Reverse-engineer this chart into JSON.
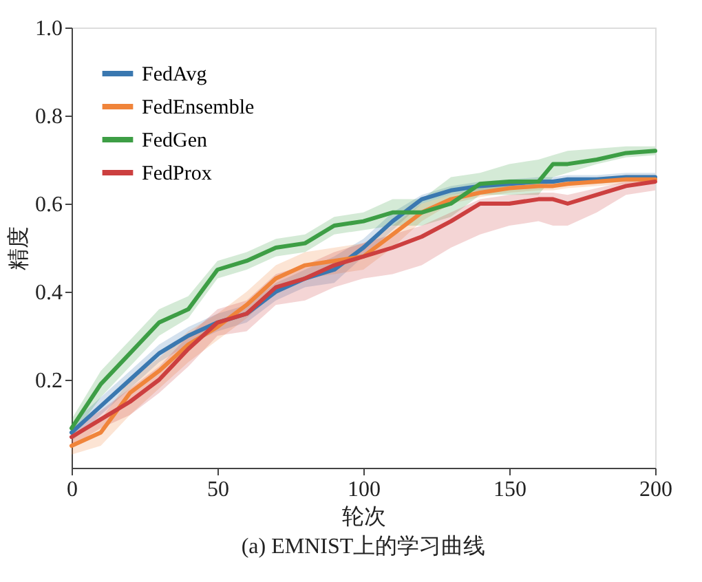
{
  "chart_data": {
    "type": "line",
    "title": "(a) EMNIST上的学习曲线",
    "xlabel": "轮次",
    "ylabel": "精度",
    "x": [
      0,
      10,
      20,
      30,
      40,
      50,
      60,
      70,
      80,
      90,
      100,
      110,
      120,
      130,
      140,
      150,
      160,
      165,
      170,
      180,
      190,
      200
    ],
    "series": [
      {
        "name": "FedAvg",
        "color": "#3a78b0",
        "values": [
          0.08,
          0.14,
          0.2,
          0.26,
          0.3,
          0.33,
          0.35,
          0.4,
          0.43,
          0.45,
          0.5,
          0.56,
          0.61,
          0.63,
          0.64,
          0.645,
          0.65,
          0.65,
          0.655,
          0.655,
          0.66,
          0.66
        ],
        "lower": [
          0.06,
          0.12,
          0.18,
          0.24,
          0.28,
          0.31,
          0.33,
          0.38,
          0.41,
          0.42,
          0.48,
          0.54,
          0.6,
          0.62,
          0.63,
          0.635,
          0.64,
          0.64,
          0.645,
          0.645,
          0.65,
          0.65
        ],
        "upper": [
          0.1,
          0.16,
          0.22,
          0.28,
          0.32,
          0.35,
          0.37,
          0.42,
          0.45,
          0.48,
          0.52,
          0.58,
          0.62,
          0.64,
          0.65,
          0.655,
          0.66,
          0.66,
          0.665,
          0.665,
          0.67,
          0.67
        ]
      },
      {
        "name": "FedEnsemble",
        "color": "#f0843a",
        "values": [
          0.05,
          0.08,
          0.17,
          0.22,
          0.28,
          0.32,
          0.37,
          0.43,
          0.46,
          0.47,
          0.48,
          0.53,
          0.58,
          0.61,
          0.625,
          0.635,
          0.64,
          0.64,
          0.645,
          0.65,
          0.655,
          0.655
        ],
        "lower": [
          0.03,
          0.05,
          0.12,
          0.18,
          0.24,
          0.29,
          0.34,
          0.4,
          0.43,
          0.44,
          0.45,
          0.5,
          0.56,
          0.6,
          0.615,
          0.625,
          0.63,
          0.63,
          0.635,
          0.64,
          0.645,
          0.645
        ],
        "upper": [
          0.07,
          0.11,
          0.2,
          0.25,
          0.31,
          0.35,
          0.4,
          0.46,
          0.49,
          0.5,
          0.51,
          0.55,
          0.6,
          0.62,
          0.635,
          0.645,
          0.65,
          0.65,
          0.655,
          0.66,
          0.665,
          0.665
        ]
      },
      {
        "name": "FedGen",
        "color": "#3d9e45",
        "values": [
          0.09,
          0.19,
          0.26,
          0.33,
          0.36,
          0.45,
          0.47,
          0.5,
          0.51,
          0.55,
          0.56,
          0.58,
          0.58,
          0.6,
          0.645,
          0.65,
          0.65,
          0.69,
          0.69,
          0.7,
          0.715,
          0.72
        ],
        "lower": [
          0.07,
          0.16,
          0.23,
          0.3,
          0.34,
          0.43,
          0.45,
          0.48,
          0.49,
          0.53,
          0.54,
          0.55,
          0.55,
          0.57,
          0.62,
          0.62,
          0.62,
          0.66,
          0.67,
          0.69,
          0.705,
          0.71
        ],
        "upper": [
          0.11,
          0.22,
          0.29,
          0.36,
          0.39,
          0.47,
          0.49,
          0.52,
          0.53,
          0.57,
          0.58,
          0.61,
          0.61,
          0.66,
          0.67,
          0.69,
          0.7,
          0.71,
          0.72,
          0.725,
          0.73,
          0.73
        ]
      },
      {
        "name": "FedProx",
        "color": "#cc3f3f",
        "values": [
          0.07,
          0.11,
          0.15,
          0.2,
          0.27,
          0.33,
          0.35,
          0.41,
          0.43,
          0.46,
          0.48,
          0.5,
          0.525,
          0.56,
          0.6,
          0.6,
          0.61,
          0.61,
          0.6,
          0.62,
          0.64,
          0.65
        ],
        "lower": [
          0.05,
          0.09,
          0.12,
          0.17,
          0.23,
          0.3,
          0.31,
          0.37,
          0.38,
          0.41,
          0.43,
          0.44,
          0.46,
          0.5,
          0.53,
          0.55,
          0.56,
          0.55,
          0.55,
          0.58,
          0.62,
          0.63
        ],
        "upper": [
          0.09,
          0.13,
          0.18,
          0.23,
          0.3,
          0.36,
          0.38,
          0.44,
          0.46,
          0.49,
          0.51,
          0.53,
          0.55,
          0.58,
          0.61,
          0.62,
          0.625,
          0.625,
          0.62,
          0.635,
          0.65,
          0.66
        ]
      }
    ],
    "xlim": [
      0,
      200
    ],
    "xticks": [
      0,
      50,
      100,
      150,
      200
    ],
    "ylim": [
      0,
      1.0
    ],
    "yticks": [
      {
        "value": 0.2,
        "label": "0.2"
      },
      {
        "value": 0.4,
        "label": "0.4"
      },
      {
        "value": 0.6,
        "label": "0.6"
      },
      {
        "value": 0.8,
        "label": "0.8"
      },
      {
        "value": 1.0,
        "label": "1.0"
      }
    ],
    "grid": false,
    "legend": "top left",
    "line_style": "solid",
    "marker": "none"
  }
}
